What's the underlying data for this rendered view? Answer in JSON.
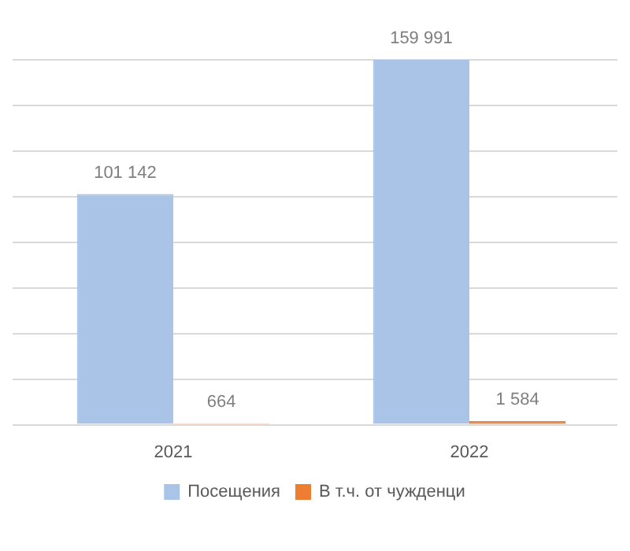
{
  "chart_data": {
    "type": "bar",
    "categories": [
      "2021",
      "2022"
    ],
    "series": [
      {
        "name": "Посещения",
        "color": "#a9c4e6",
        "values": [
          101142,
          159991
        ]
      },
      {
        "name": "В т.ч. от чужденци",
        "color": "#ed7d31",
        "values": [
          664,
          1584
        ]
      }
    ],
    "data_labels": true,
    "grid": "y",
    "legend": "bottom"
  }
}
